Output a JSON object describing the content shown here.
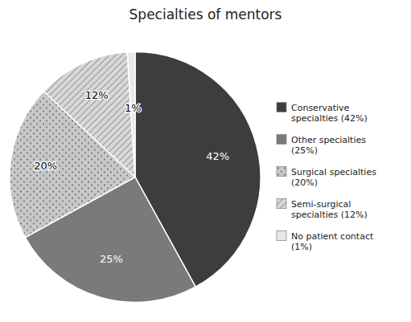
{
  "chart_data": {
    "type": "pie",
    "title": "Specialties of mentors",
    "categories": [
      "Conservative\nspecialties (42%)",
      "Other specialties\n(25%)",
      "Surgical specialties\n(20%)",
      "Semi-surgical\nspecialties (12%)",
      "No patient contact\n(1%)"
    ],
    "values": [
      42,
      25,
      20,
      12,
      1
    ],
    "value_labels": [
      "42%",
      "25%",
      "20%",
      "12%",
      "1%"
    ],
    "colors": [
      "#3d3d3d",
      "#7a7a7a",
      "#c8c8c8",
      "#d8d8d8",
      "#e8e8e8"
    ],
    "data_labels": true,
    "legend": "right"
  }
}
